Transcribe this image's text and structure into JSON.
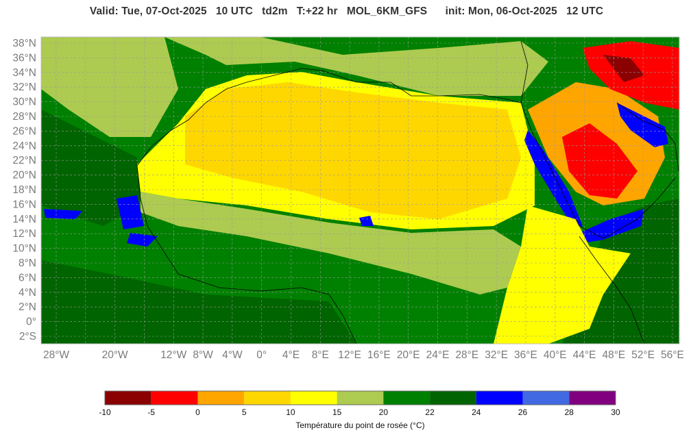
{
  "header": {
    "title": "Valid: Tue, 07-Oct-2025   10 UTC   td2m   T:+22 hr   MOL_6KM_GFS      init: Mon, 06-Oct-2025   12 UTC"
  },
  "map": {
    "lat_labels": [
      "38°N",
      "36°N",
      "34°N",
      "32°N",
      "30°N",
      "28°N",
      "26°N",
      "24°N",
      "22°N",
      "20°N",
      "18°N",
      "16°N",
      "14°N",
      "12°N",
      "10°N",
      "8°N",
      "6°N",
      "4°N",
      "2°N",
      "0°",
      "2°S"
    ],
    "lon_labels": [
      "28°W",
      "20°W",
      "12°W",
      "8°W",
      "4°W",
      "0°",
      "4°E",
      "8°E",
      "12°E",
      "16°E",
      "20°E",
      "24°E",
      "28°E",
      "32°E",
      "36°E",
      "40°E",
      "44°E",
      "48°E",
      "52°E",
      "56°E"
    ]
  },
  "colorbar": {
    "title": "Température du point de rosée (°C)",
    "ticks": [
      "-10",
      "-5",
      "0",
      "5",
      "10",
      "15",
      "20",
      "22",
      "24",
      "26",
      "28",
      "30"
    ],
    "colors": [
      "#8b0000",
      "#ff0000",
      "#ffa500",
      "#ffd700",
      "#ffff00",
      "#adcb50",
      "#008000",
      "#006400",
      "#0000ff",
      "#4169e1",
      "#800080"
    ]
  }
}
